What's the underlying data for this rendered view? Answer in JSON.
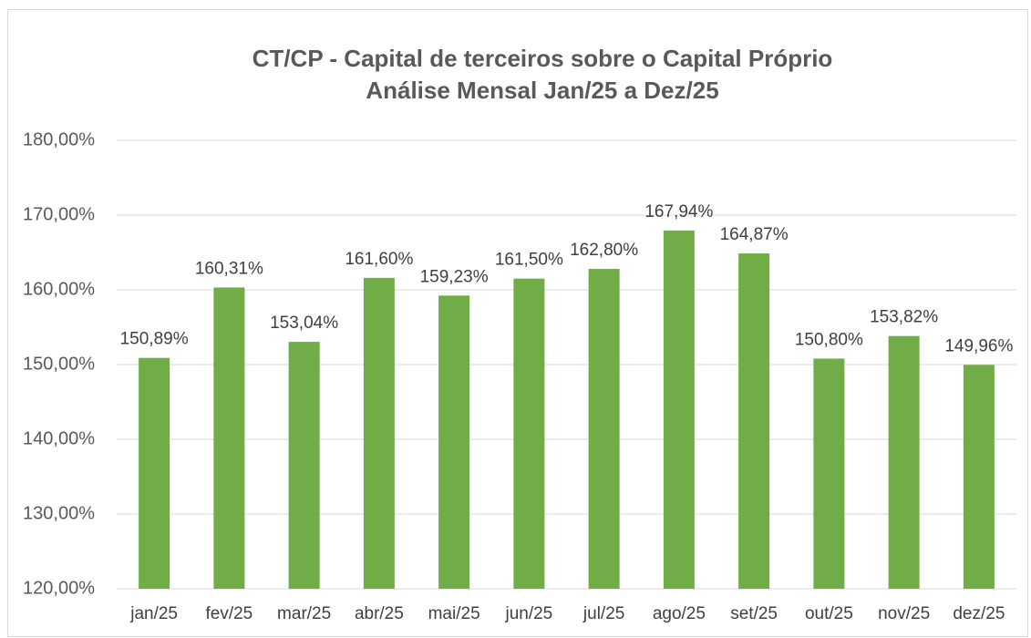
{
  "chart_data": {
    "type": "bar",
    "title": "CT/CP - Capital de terceiros sobre o Capital Próprio",
    "subtitle": "Análise Mensal Jan/25 a Dez/25",
    "categories": [
      "jan/25",
      "fev/25",
      "mar/25",
      "abr/25",
      "mai/25",
      "jun/25",
      "jul/25",
      "ago/25",
      "set/25",
      "out/25",
      "nov/25",
      "dez/25"
    ],
    "values": [
      150.89,
      160.31,
      153.04,
      161.6,
      159.23,
      161.5,
      162.8,
      167.94,
      164.87,
      150.8,
      153.82,
      149.96
    ],
    "value_labels": [
      "150,89%",
      "160,31%",
      "153,04%",
      "161,60%",
      "159,23%",
      "161,50%",
      "162,80%",
      "167,94%",
      "164,87%",
      "150,80%",
      "153,82%",
      "149,96%"
    ],
    "color": "#70ad47",
    "ylim": [
      120,
      180
    ],
    "yticks": [
      {
        "value": 120,
        "label": "120,00%"
      },
      {
        "value": 130,
        "label": "130,00%"
      },
      {
        "value": 140,
        "label": "140,00%"
      },
      {
        "value": 150,
        "label": "150,00%"
      },
      {
        "value": 160,
        "label": "160,00%"
      },
      {
        "value": 170,
        "label": "170,00%"
      },
      {
        "value": 180,
        "label": "180,00%"
      }
    ],
    "grid": true
  }
}
